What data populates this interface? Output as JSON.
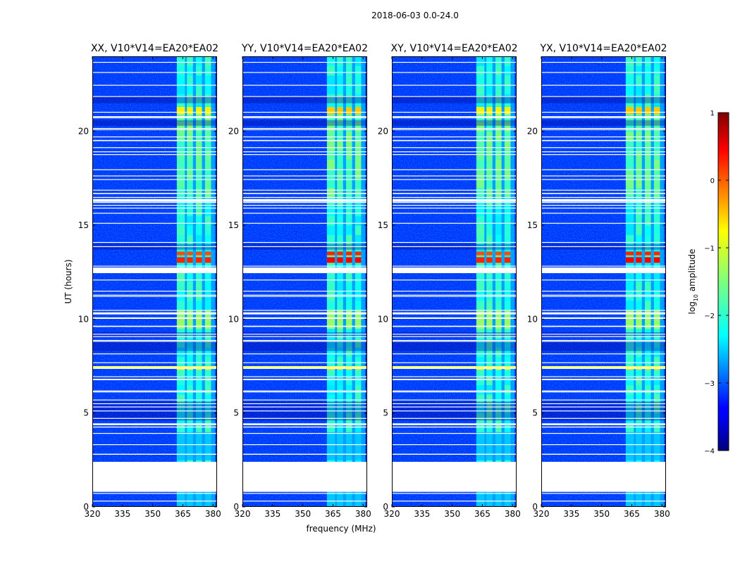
{
  "chart_data": {
    "type": "heatmap",
    "suptitle": "2018-06-03 0.0-24.0",
    "xlabel": "frequency (MHz)",
    "ylabel": "UT (hours)",
    "xlim": [
      320,
      382
    ],
    "ylim": [
      0,
      24
    ],
    "x_ticks": [
      320,
      335,
      350,
      365,
      380
    ],
    "y_ticks": [
      0,
      5,
      10,
      15,
      20
    ],
    "colorbar": {
      "label": "log10 amplitude",
      "label_main": "log",
      "label_sub": "10",
      "label_rest": " amplitude",
      "range": [
        -4,
        1
      ],
      "ticks": [
        -4,
        -3,
        -2,
        -1,
        0,
        1
      ],
      "tick_labels": [
        "−4",
        "−3",
        "−2",
        "−1",
        "0",
        "1"
      ]
    },
    "panels": [
      {
        "title": "XX, V10*V14=EA20*EA02",
        "polarization": "XX",
        "extra_rfi": false
      },
      {
        "title": "YY, V10*V14=EA20*EA02",
        "polarization": "YY",
        "extra_rfi": true
      },
      {
        "title": "XY, V10*V14=EA20*EA02",
        "polarization": "XY",
        "extra_rfi": false
      },
      {
        "title": "YX, V10*V14=EA20*EA02",
        "polarization": "YX",
        "extra_rfi": true
      }
    ],
    "flagged_ut_ranges": [
      [
        0.8,
        2.4
      ],
      [
        12.45,
        12.75
      ],
      [
        16.25,
        16.4
      ],
      [
        10.25,
        10.35
      ],
      [
        4.35,
        4.45
      ]
    ],
    "rfi_band_mhz": [
      362,
      381
    ],
    "rfi_channels_mhz": [
      [
        362,
        366
      ],
      [
        367,
        370
      ],
      [
        371.5,
        374.5
      ],
      [
        376,
        379
      ]
    ],
    "bright_events": [
      {
        "ut": [
          13.0,
          13.3
        ],
        "log_amp": 0.2
      },
      {
        "ut": [
          13.4,
          13.6
        ],
        "log_amp": 0.0
      },
      {
        "ut": [
          20.9,
          21.3
        ],
        "log_amp": -0.8
      },
      {
        "ut": [
          7.3,
          7.5
        ],
        "log_amp": -0.9
      }
    ]
  }
}
